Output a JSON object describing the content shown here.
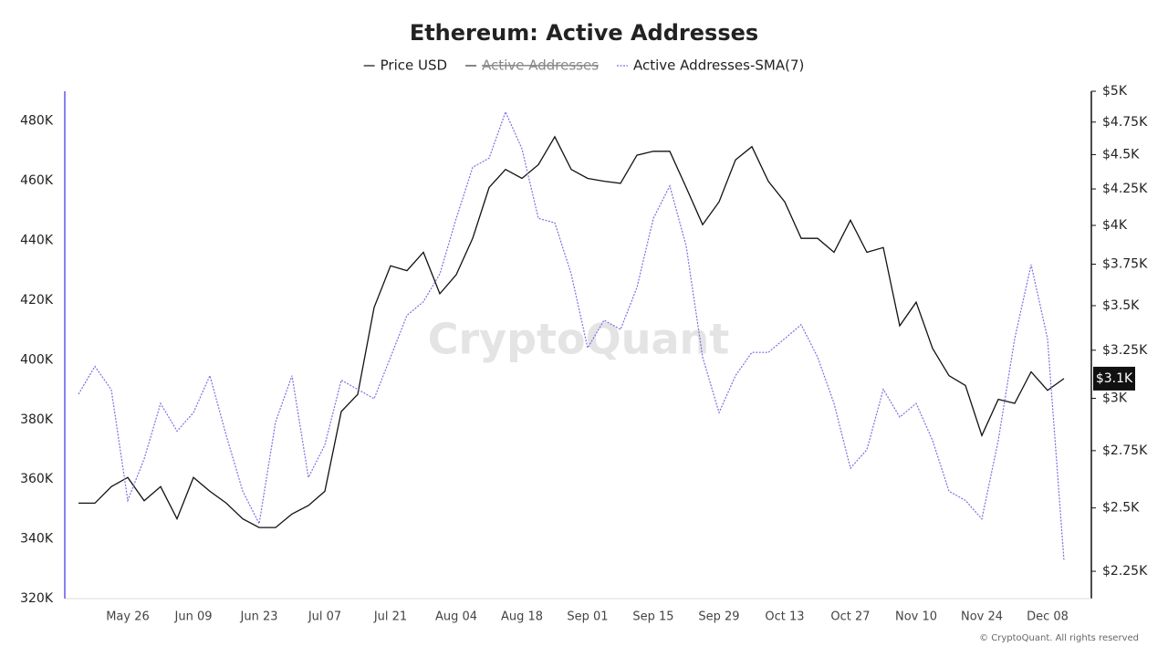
{
  "chart_data": {
    "type": "line",
    "title": "Ethereum: Active Addresses",
    "watermark": "CryptoQuant",
    "credit": "© CryptoQuant. All rights reserved",
    "current_value_label": "$3.1K",
    "categories": [
      null,
      null,
      null,
      "May 26",
      null,
      null,
      null,
      "Jun 09",
      null,
      null,
      null,
      "Jun 23",
      null,
      null,
      null,
      "Jul 07",
      null,
      null,
      null,
      "Jul 21",
      null,
      null,
      null,
      "Aug 04",
      null,
      null,
      null,
      "Aug 18",
      null,
      null,
      null,
      "Sep 01",
      null,
      null,
      null,
      "Sep 15",
      null,
      null,
      null,
      "Sep 29",
      null,
      null,
      null,
      "Oct 13",
      null,
      null,
      null,
      "Oct 27",
      null,
      null,
      null,
      "Nov 10",
      null,
      null,
      null,
      "Nov 24",
      null,
      null,
      null,
      "Dec 08",
      null
    ],
    "series": [
      {
        "name": "Price USD",
        "color": "#111111",
        "axis": "y2",
        "dash": "solid",
        "visible": true,
        "values": [
          2520,
          2520,
          2590,
          2630,
          2530,
          2590,
          2455,
          2630,
          2570,
          2520,
          2455,
          2420,
          2420,
          2475,
          2510,
          2570,
          2935,
          3020,
          3490,
          3740,
          3710,
          3825,
          3570,
          3685,
          3915,
          4260,
          4390,
          4325,
          4425,
          4635,
          4390,
          4325,
          4305,
          4290,
          4495,
          4525,
          4525,
          4260,
          4005,
          4160,
          4460,
          4560,
          4305,
          4160,
          3915,
          3915,
          3825,
          4035,
          3825,
          3855,
          3385,
          3520,
          3260,
          3115,
          3065,
          2820,
          2995,
          2975,
          3135,
          3040,
          3100
        ]
      },
      {
        "name": "Active Addresses",
        "color": "#333333",
        "axis": "y",
        "dash": "solid",
        "visible": false,
        "values": [
          null,
          null,
          null,
          null,
          null,
          null,
          null,
          null,
          null,
          null,
          null,
          null,
          null,
          null,
          null,
          null,
          null,
          null,
          null,
          null,
          null,
          null,
          null,
          null,
          null,
          null,
          null,
          null,
          null,
          null,
          null,
          null,
          null,
          null,
          null,
          null,
          null,
          null,
          null,
          null,
          null,
          null,
          null,
          null,
          null,
          null,
          null,
          null,
          null,
          null,
          null,
          null,
          null,
          null,
          null,
          null,
          null,
          null,
          null,
          null,
          null
        ]
      },
      {
        "name": "Active Addresses-SMA(7)",
        "color": "#7b6fe0",
        "axis": "y",
        "dash": "dotted",
        "visible": true,
        "values": [
          388.5,
          397.8,
          390,
          352.9,
          366.8,
          385.4,
          376.1,
          382.3,
          394.7,
          374.6,
          356,
          345.1,
          379.2,
          394.7,
          360.6,
          371.5,
          393.2,
          390.1,
          387,
          400.9,
          414.9,
          419.5,
          428.8,
          447.4,
          464.5,
          467.6,
          483.1,
          470.7,
          447.4,
          445.9,
          428.8,
          404,
          413.3,
          410.2,
          424.2,
          447.4,
          458.3,
          438.1,
          400.9,
          382.3,
          394.7,
          402.5,
          402.5,
          407.1,
          411.8,
          400.9,
          385.4,
          363.7,
          369.9,
          390.1,
          380.8,
          385.4,
          373,
          356,
          352.9,
          346.7,
          373,
          407.1,
          431.9,
          407.1,
          332.7
        ]
      }
    ],
    "ylim": [
      320,
      490
    ],
    "yticks": [
      {
        "value": 320,
        "label": "320K"
      },
      {
        "value": 340,
        "label": "340K"
      },
      {
        "value": 360,
        "label": "360K"
      },
      {
        "value": 380,
        "label": "380K"
      },
      {
        "value": 400,
        "label": "400K"
      },
      {
        "value": 420,
        "label": "420K"
      },
      {
        "value": 440,
        "label": "440K"
      },
      {
        "value": 460,
        "label": "460K"
      },
      {
        "value": 480,
        "label": "480K"
      }
    ],
    "y2scale": "log",
    "y2lim": [
      2150,
      5000
    ],
    "y2ticks": [
      {
        "value": 2250,
        "label": "$2.25K"
      },
      {
        "value": 2500,
        "label": "$2.5K"
      },
      {
        "value": 2750,
        "label": "$2.75K"
      },
      {
        "value": 3000,
        "label": "$3K"
      },
      {
        "value": 3250,
        "label": "$3.25K"
      },
      {
        "value": 3500,
        "label": "$3.5K"
      },
      {
        "value": 3750,
        "label": "$3.75K"
      },
      {
        "value": 4000,
        "label": "$4K"
      },
      {
        "value": 4250,
        "label": "$4.25K"
      },
      {
        "value": 4500,
        "label": "$4.5K"
      },
      {
        "value": 4750,
        "label": "$4.75K"
      },
      {
        "value": 5000,
        "label": "$5K"
      }
    ],
    "legend": "top"
  }
}
